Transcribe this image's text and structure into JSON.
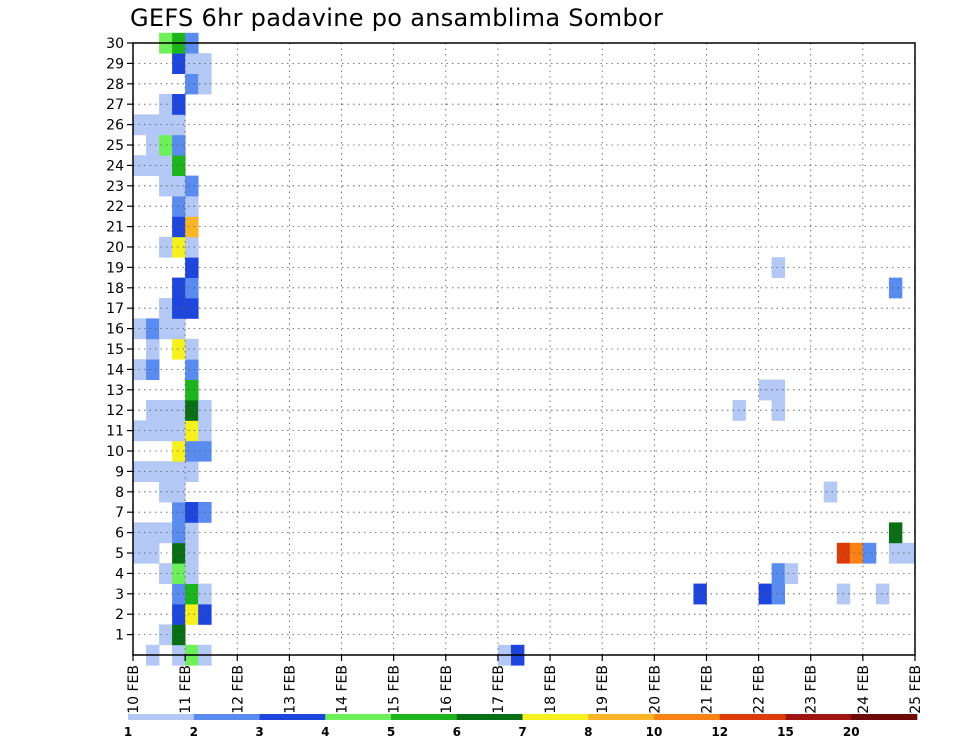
{
  "chart_data": {
    "type": "heatmap",
    "title": "GEFS 6hr padavine po ansamblima Sombor",
    "x_ticks": [
      "10 FEB",
      "11 FEB",
      "12 FEB",
      "13 FEB",
      "14 FEB",
      "15 FEB",
      "16 FEB",
      "17 FEB",
      "18 FEB",
      "19 FEB",
      "20 FEB",
      "21 FEB",
      "22 FEB",
      "23 FEB",
      "24 FEB",
      "25 FEB"
    ],
    "y_ticks": [
      "1",
      "2",
      "3",
      "4",
      "5",
      "6",
      "7",
      "8",
      "9",
      "10",
      "11",
      "12",
      "13",
      "14",
      "15",
      "16",
      "17",
      "18",
      "19",
      "20",
      "21",
      "22",
      "23",
      "24",
      "25",
      "26",
      "27",
      "28",
      "29",
      "30"
    ],
    "ylim": [
      0,
      30
    ],
    "x_range_days": [
      10,
      25
    ],
    "steps_per_day": 4,
    "grid": true,
    "legend_placement": "bottom",
    "colorbar": {
      "labels": [
        "1",
        "2",
        "3",
        "4",
        "5",
        "6",
        "7",
        "8",
        "10",
        "12",
        "15",
        "20"
      ],
      "colors": [
        "#b4c8f5",
        "#5a8cf0",
        "#1e46dc",
        "#6ef05a",
        "#1eb41e",
        "#0a6e14",
        "#f5f01e",
        "#fab428",
        "#fa8214",
        "#dc3c0a",
        "#a01414",
        "#6e0a0a"
      ]
    },
    "cells_legend": "each cell = [x time value (day of FEB at 6-hourly step), member, colour class index 0-11]",
    "cells": [
      [
        10.25,
        0,
        0
      ],
      [
        10.75,
        0,
        0
      ],
      [
        11.0,
        0,
        3
      ],
      [
        11.25,
        0,
        0
      ],
      [
        17.0,
        0,
        0
      ],
      [
        17.25,
        0,
        2
      ],
      [
        10.5,
        1,
        0
      ],
      [
        10.75,
        1,
        5
      ],
      [
        10.75,
        2,
        2
      ],
      [
        11.0,
        2,
        6
      ],
      [
        11.25,
        2,
        2
      ],
      [
        10.75,
        3,
        1
      ],
      [
        11.0,
        3,
        4
      ],
      [
        11.25,
        3,
        0
      ],
      [
        20.75,
        3,
        2
      ],
      [
        22.0,
        3,
        2
      ],
      [
        22.25,
        3,
        1
      ],
      [
        23.5,
        3,
        0
      ],
      [
        24.25,
        3,
        0
      ],
      [
        10.5,
        4,
        0
      ],
      [
        10.75,
        4,
        3
      ],
      [
        11.0,
        4,
        0
      ],
      [
        22.25,
        4,
        1
      ],
      [
        22.5,
        4,
        0
      ],
      [
        10.0,
        5,
        0
      ],
      [
        10.25,
        5,
        0
      ],
      [
        10.75,
        5,
        5
      ],
      [
        11.0,
        5,
        0
      ],
      [
        23.5,
        5,
        9
      ],
      [
        23.75,
        5,
        8
      ],
      [
        24.0,
        5,
        1
      ],
      [
        24.5,
        5,
        0
      ],
      [
        24.75,
        5,
        0
      ],
      [
        10.0,
        6,
        0
      ],
      [
        10.25,
        6,
        0
      ],
      [
        10.5,
        6,
        0
      ],
      [
        10.75,
        6,
        1
      ],
      [
        11.0,
        6,
        0
      ],
      [
        24.5,
        6,
        5
      ],
      [
        10.75,
        7,
        1
      ],
      [
        11.0,
        7,
        2
      ],
      [
        11.25,
        7,
        1
      ],
      [
        10.5,
        8,
        0
      ],
      [
        10.75,
        8,
        0
      ],
      [
        23.25,
        8,
        0
      ],
      [
        10.0,
        9,
        0
      ],
      [
        10.25,
        9,
        0
      ],
      [
        10.5,
        9,
        0
      ],
      [
        10.75,
        9,
        0
      ],
      [
        11.0,
        9,
        0
      ],
      [
        10.75,
        10,
        6
      ],
      [
        11.0,
        10,
        1
      ],
      [
        11.25,
        10,
        1
      ],
      [
        10.0,
        11,
        0
      ],
      [
        10.25,
        11,
        0
      ],
      [
        10.5,
        11,
        0
      ],
      [
        10.75,
        11,
        0
      ],
      [
        11.0,
        11,
        6
      ],
      [
        11.25,
        11,
        0
      ],
      [
        10.25,
        12,
        0
      ],
      [
        10.5,
        12,
        0
      ],
      [
        10.75,
        12,
        0
      ],
      [
        11.0,
        12,
        5
      ],
      [
        11.25,
        12,
        0
      ],
      [
        21.5,
        12,
        0
      ],
      [
        22.25,
        12,
        0
      ],
      [
        11.0,
        13,
        4
      ],
      [
        22.0,
        13,
        0
      ],
      [
        22.25,
        13,
        0
      ],
      [
        10.0,
        14,
        0
      ],
      [
        10.25,
        14,
        1
      ],
      [
        11.0,
        14,
        1
      ],
      [
        10.25,
        15,
        0
      ],
      [
        10.75,
        15,
        6
      ],
      [
        11.0,
        15,
        0
      ],
      [
        10.0,
        16,
        0
      ],
      [
        10.25,
        16,
        1
      ],
      [
        10.5,
        16,
        0
      ],
      [
        10.75,
        16,
        0
      ],
      [
        10.5,
        17,
        0
      ],
      [
        10.75,
        17,
        2
      ],
      [
        11.0,
        17,
        2
      ],
      [
        10.75,
        18,
        2
      ],
      [
        11.0,
        18,
        1
      ],
      [
        24.5,
        18,
        1
      ],
      [
        11.0,
        19,
        2
      ],
      [
        22.25,
        19,
        0
      ],
      [
        10.5,
        20,
        0
      ],
      [
        10.75,
        20,
        6
      ],
      [
        11.0,
        20,
        0
      ],
      [
        10.75,
        21,
        2
      ],
      [
        11.0,
        21,
        7
      ],
      [
        10.75,
        22,
        1
      ],
      [
        11.0,
        22,
        0
      ],
      [
        10.5,
        23,
        0
      ],
      [
        10.75,
        23,
        0
      ],
      [
        11.0,
        23,
        1
      ],
      [
        10.0,
        24,
        0
      ],
      [
        10.25,
        24,
        0
      ],
      [
        10.5,
        24,
        0
      ],
      [
        10.75,
        24,
        4
      ],
      [
        10.25,
        25,
        0
      ],
      [
        10.5,
        25,
        3
      ],
      [
        10.75,
        25,
        1
      ],
      [
        10.0,
        26,
        0
      ],
      [
        10.25,
        26,
        0
      ],
      [
        10.5,
        26,
        0
      ],
      [
        10.75,
        26,
        0
      ],
      [
        10.5,
        27,
        0
      ],
      [
        10.75,
        27,
        2
      ],
      [
        11.0,
        28,
        1
      ],
      [
        11.25,
        28,
        0
      ],
      [
        10.75,
        29,
        2
      ],
      [
        11.0,
        29,
        0
      ],
      [
        11.25,
        29,
        0
      ],
      [
        10.5,
        30,
        3
      ],
      [
        10.75,
        30,
        4
      ],
      [
        11.0,
        30,
        1
      ]
    ]
  }
}
